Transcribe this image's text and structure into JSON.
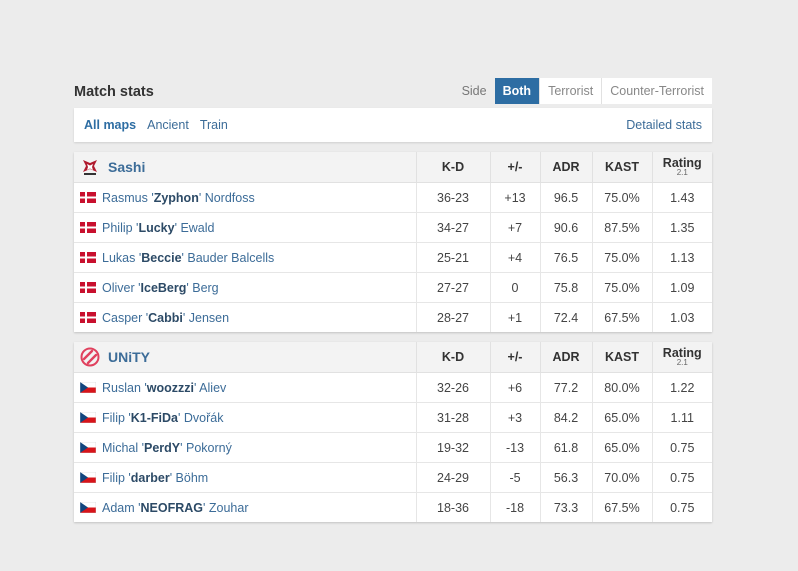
{
  "title": "Match stats",
  "side_filter": {
    "label": "Side",
    "options": [
      "Both",
      "Terrorist",
      "Counter-Terrorist"
    ],
    "active": "Both"
  },
  "maps": {
    "items": [
      "All maps",
      "Ancient",
      "Train"
    ],
    "active": "All maps",
    "detailed_link": "Detailed stats"
  },
  "columns": {
    "kd": "K-D",
    "pm": "+/-",
    "adr": "ADR",
    "kast": "KAST",
    "rating": "Rating",
    "rating_version": "2.1"
  },
  "colors": {
    "accent": "#2d6da3",
    "link": "#3c6c98",
    "positive": "#4caf28",
    "negative": "#d9363e"
  },
  "teams": [
    {
      "name": "Sashi",
      "logo_icon": "sashi-logo-icon",
      "players": [
        {
          "flag": "denmark-flag-icon",
          "first": "Rasmus",
          "nick": "Zyphon",
          "last": "Nordfoss",
          "kd": "36-23",
          "pm": "+13",
          "pm_class": "pos",
          "adr": "96.5",
          "kast": "75.0%",
          "rating": "1.43"
        },
        {
          "flag": "denmark-flag-icon",
          "first": "Philip",
          "nick": "Lucky",
          "last": "Ewald",
          "kd": "34-27",
          "pm": "+7",
          "pm_class": "pos",
          "adr": "90.6",
          "kast": "87.5%",
          "rating": "1.35"
        },
        {
          "flag": "denmark-flag-icon",
          "first": "Lukas",
          "nick": "Beccie",
          "last": "Bauder Balcells",
          "kd": "25-21",
          "pm": "+4",
          "pm_class": "pos",
          "adr": "76.5",
          "kast": "75.0%",
          "rating": "1.13"
        },
        {
          "flag": "denmark-flag-icon",
          "first": "Oliver",
          "nick": "IceBerg",
          "last": "Berg",
          "kd": "27-27",
          "pm": "0",
          "pm_class": "zero",
          "adr": "75.8",
          "kast": "75.0%",
          "rating": "1.09"
        },
        {
          "flag": "denmark-flag-icon",
          "first": "Casper",
          "nick": "Cabbi",
          "last": "Jensen",
          "kd": "28-27",
          "pm": "+1",
          "pm_class": "pos",
          "adr": "72.4",
          "kast": "67.5%",
          "rating": "1.03"
        }
      ]
    },
    {
      "name": "UNiTY",
      "logo_icon": "unity-logo-icon",
      "players": [
        {
          "flag": "czech-flag-icon",
          "first": "Ruslan",
          "nick": "woozzzi",
          "last": "Aliev",
          "kd": "32-26",
          "pm": "+6",
          "pm_class": "pos",
          "adr": "77.2",
          "kast": "80.0%",
          "rating": "1.22"
        },
        {
          "flag": "czech-flag-icon",
          "first": "Filip",
          "nick": "K1-FiDa",
          "last": "Dvořák",
          "kd": "31-28",
          "pm": "+3",
          "pm_class": "pos",
          "adr": "84.2",
          "kast": "65.0%",
          "rating": "1.11"
        },
        {
          "flag": "czech-flag-icon",
          "first": "Michal",
          "nick": "PerdY",
          "last": "Pokorný",
          "kd": "19-32",
          "pm": "-13",
          "pm_class": "neg",
          "adr": "61.8",
          "kast": "65.0%",
          "rating": "0.75"
        },
        {
          "flag": "czech-flag-icon",
          "first": "Filip",
          "nick": "darber",
          "last": "Böhm",
          "kd": "24-29",
          "pm": "-5",
          "pm_class": "neg",
          "adr": "56.3",
          "kast": "70.0%",
          "rating": "0.75"
        },
        {
          "flag": "czech-flag-icon",
          "first": "Adam",
          "nick": "NEOFRAG",
          "last": "Zouhar",
          "kd": "18-36",
          "pm": "-18",
          "pm_class": "neg",
          "adr": "73.3",
          "kast": "67.5%",
          "rating": "0.75"
        }
      ]
    }
  ]
}
